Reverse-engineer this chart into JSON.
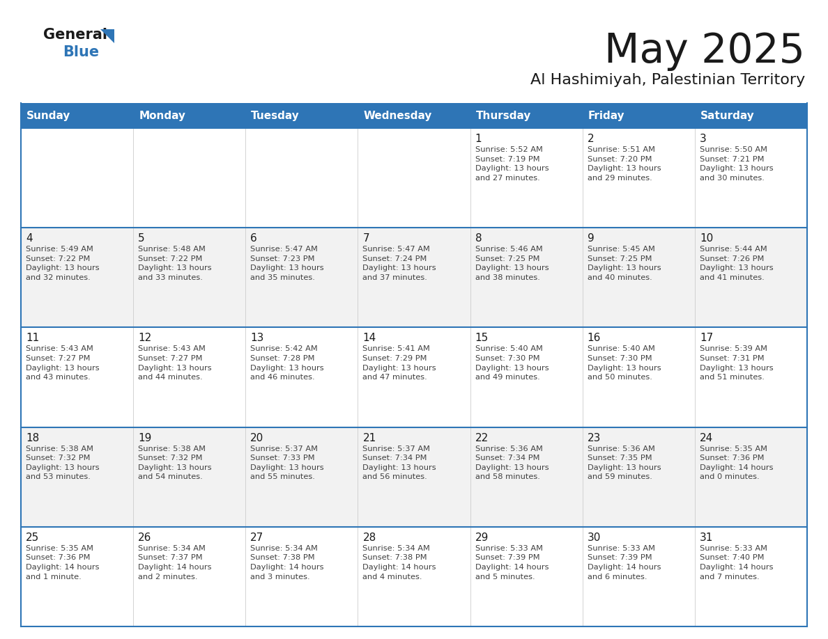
{
  "title": "May 2025",
  "subtitle": "Al Hashimiyah, Palestinian Territory",
  "header_bg_color": "#2E75B6",
  "header_text_color": "#FFFFFF",
  "row_bg_colors": [
    "#FFFFFF",
    "#F2F2F2"
  ],
  "title_color": "#1a1a1a",
  "subtitle_color": "#1a1a1a",
  "days_of_week": [
    "Sunday",
    "Monday",
    "Tuesday",
    "Wednesday",
    "Thursday",
    "Friday",
    "Saturday"
  ],
  "cell_text_color": "#404040",
  "day_number_color": "#1a1a1a",
  "grid_line_color": "#2E75B6",
  "logo_general_color": "#1a1a1a",
  "logo_blue_color": "#2E75B6",
  "logo_triangle_color": "#2E75B6",
  "weeks": [
    [
      {
        "day": "",
        "info": ""
      },
      {
        "day": "",
        "info": ""
      },
      {
        "day": "",
        "info": ""
      },
      {
        "day": "",
        "info": ""
      },
      {
        "day": "1",
        "info": "Sunrise: 5:52 AM\nSunset: 7:19 PM\nDaylight: 13 hours\nand 27 minutes."
      },
      {
        "day": "2",
        "info": "Sunrise: 5:51 AM\nSunset: 7:20 PM\nDaylight: 13 hours\nand 29 minutes."
      },
      {
        "day": "3",
        "info": "Sunrise: 5:50 AM\nSunset: 7:21 PM\nDaylight: 13 hours\nand 30 minutes."
      }
    ],
    [
      {
        "day": "4",
        "info": "Sunrise: 5:49 AM\nSunset: 7:22 PM\nDaylight: 13 hours\nand 32 minutes."
      },
      {
        "day": "5",
        "info": "Sunrise: 5:48 AM\nSunset: 7:22 PM\nDaylight: 13 hours\nand 33 minutes."
      },
      {
        "day": "6",
        "info": "Sunrise: 5:47 AM\nSunset: 7:23 PM\nDaylight: 13 hours\nand 35 minutes."
      },
      {
        "day": "7",
        "info": "Sunrise: 5:47 AM\nSunset: 7:24 PM\nDaylight: 13 hours\nand 37 minutes."
      },
      {
        "day": "8",
        "info": "Sunrise: 5:46 AM\nSunset: 7:25 PM\nDaylight: 13 hours\nand 38 minutes."
      },
      {
        "day": "9",
        "info": "Sunrise: 5:45 AM\nSunset: 7:25 PM\nDaylight: 13 hours\nand 40 minutes."
      },
      {
        "day": "10",
        "info": "Sunrise: 5:44 AM\nSunset: 7:26 PM\nDaylight: 13 hours\nand 41 minutes."
      }
    ],
    [
      {
        "day": "11",
        "info": "Sunrise: 5:43 AM\nSunset: 7:27 PM\nDaylight: 13 hours\nand 43 minutes."
      },
      {
        "day": "12",
        "info": "Sunrise: 5:43 AM\nSunset: 7:27 PM\nDaylight: 13 hours\nand 44 minutes."
      },
      {
        "day": "13",
        "info": "Sunrise: 5:42 AM\nSunset: 7:28 PM\nDaylight: 13 hours\nand 46 minutes."
      },
      {
        "day": "14",
        "info": "Sunrise: 5:41 AM\nSunset: 7:29 PM\nDaylight: 13 hours\nand 47 minutes."
      },
      {
        "day": "15",
        "info": "Sunrise: 5:40 AM\nSunset: 7:30 PM\nDaylight: 13 hours\nand 49 minutes."
      },
      {
        "day": "16",
        "info": "Sunrise: 5:40 AM\nSunset: 7:30 PM\nDaylight: 13 hours\nand 50 minutes."
      },
      {
        "day": "17",
        "info": "Sunrise: 5:39 AM\nSunset: 7:31 PM\nDaylight: 13 hours\nand 51 minutes."
      }
    ],
    [
      {
        "day": "18",
        "info": "Sunrise: 5:38 AM\nSunset: 7:32 PM\nDaylight: 13 hours\nand 53 minutes."
      },
      {
        "day": "19",
        "info": "Sunrise: 5:38 AM\nSunset: 7:32 PM\nDaylight: 13 hours\nand 54 minutes."
      },
      {
        "day": "20",
        "info": "Sunrise: 5:37 AM\nSunset: 7:33 PM\nDaylight: 13 hours\nand 55 minutes."
      },
      {
        "day": "21",
        "info": "Sunrise: 5:37 AM\nSunset: 7:34 PM\nDaylight: 13 hours\nand 56 minutes."
      },
      {
        "day": "22",
        "info": "Sunrise: 5:36 AM\nSunset: 7:34 PM\nDaylight: 13 hours\nand 58 minutes."
      },
      {
        "day": "23",
        "info": "Sunrise: 5:36 AM\nSunset: 7:35 PM\nDaylight: 13 hours\nand 59 minutes."
      },
      {
        "day": "24",
        "info": "Sunrise: 5:35 AM\nSunset: 7:36 PM\nDaylight: 14 hours\nand 0 minutes."
      }
    ],
    [
      {
        "day": "25",
        "info": "Sunrise: 5:35 AM\nSunset: 7:36 PM\nDaylight: 14 hours\nand 1 minute."
      },
      {
        "day": "26",
        "info": "Sunrise: 5:34 AM\nSunset: 7:37 PM\nDaylight: 14 hours\nand 2 minutes."
      },
      {
        "day": "27",
        "info": "Sunrise: 5:34 AM\nSunset: 7:38 PM\nDaylight: 14 hours\nand 3 minutes."
      },
      {
        "day": "28",
        "info": "Sunrise: 5:34 AM\nSunset: 7:38 PM\nDaylight: 14 hours\nand 4 minutes."
      },
      {
        "day": "29",
        "info": "Sunrise: 5:33 AM\nSunset: 7:39 PM\nDaylight: 14 hours\nand 5 minutes."
      },
      {
        "day": "30",
        "info": "Sunrise: 5:33 AM\nSunset: 7:39 PM\nDaylight: 14 hours\nand 6 minutes."
      },
      {
        "day": "31",
        "info": "Sunrise: 5:33 AM\nSunset: 7:40 PM\nDaylight: 14 hours\nand 7 minutes."
      }
    ]
  ]
}
